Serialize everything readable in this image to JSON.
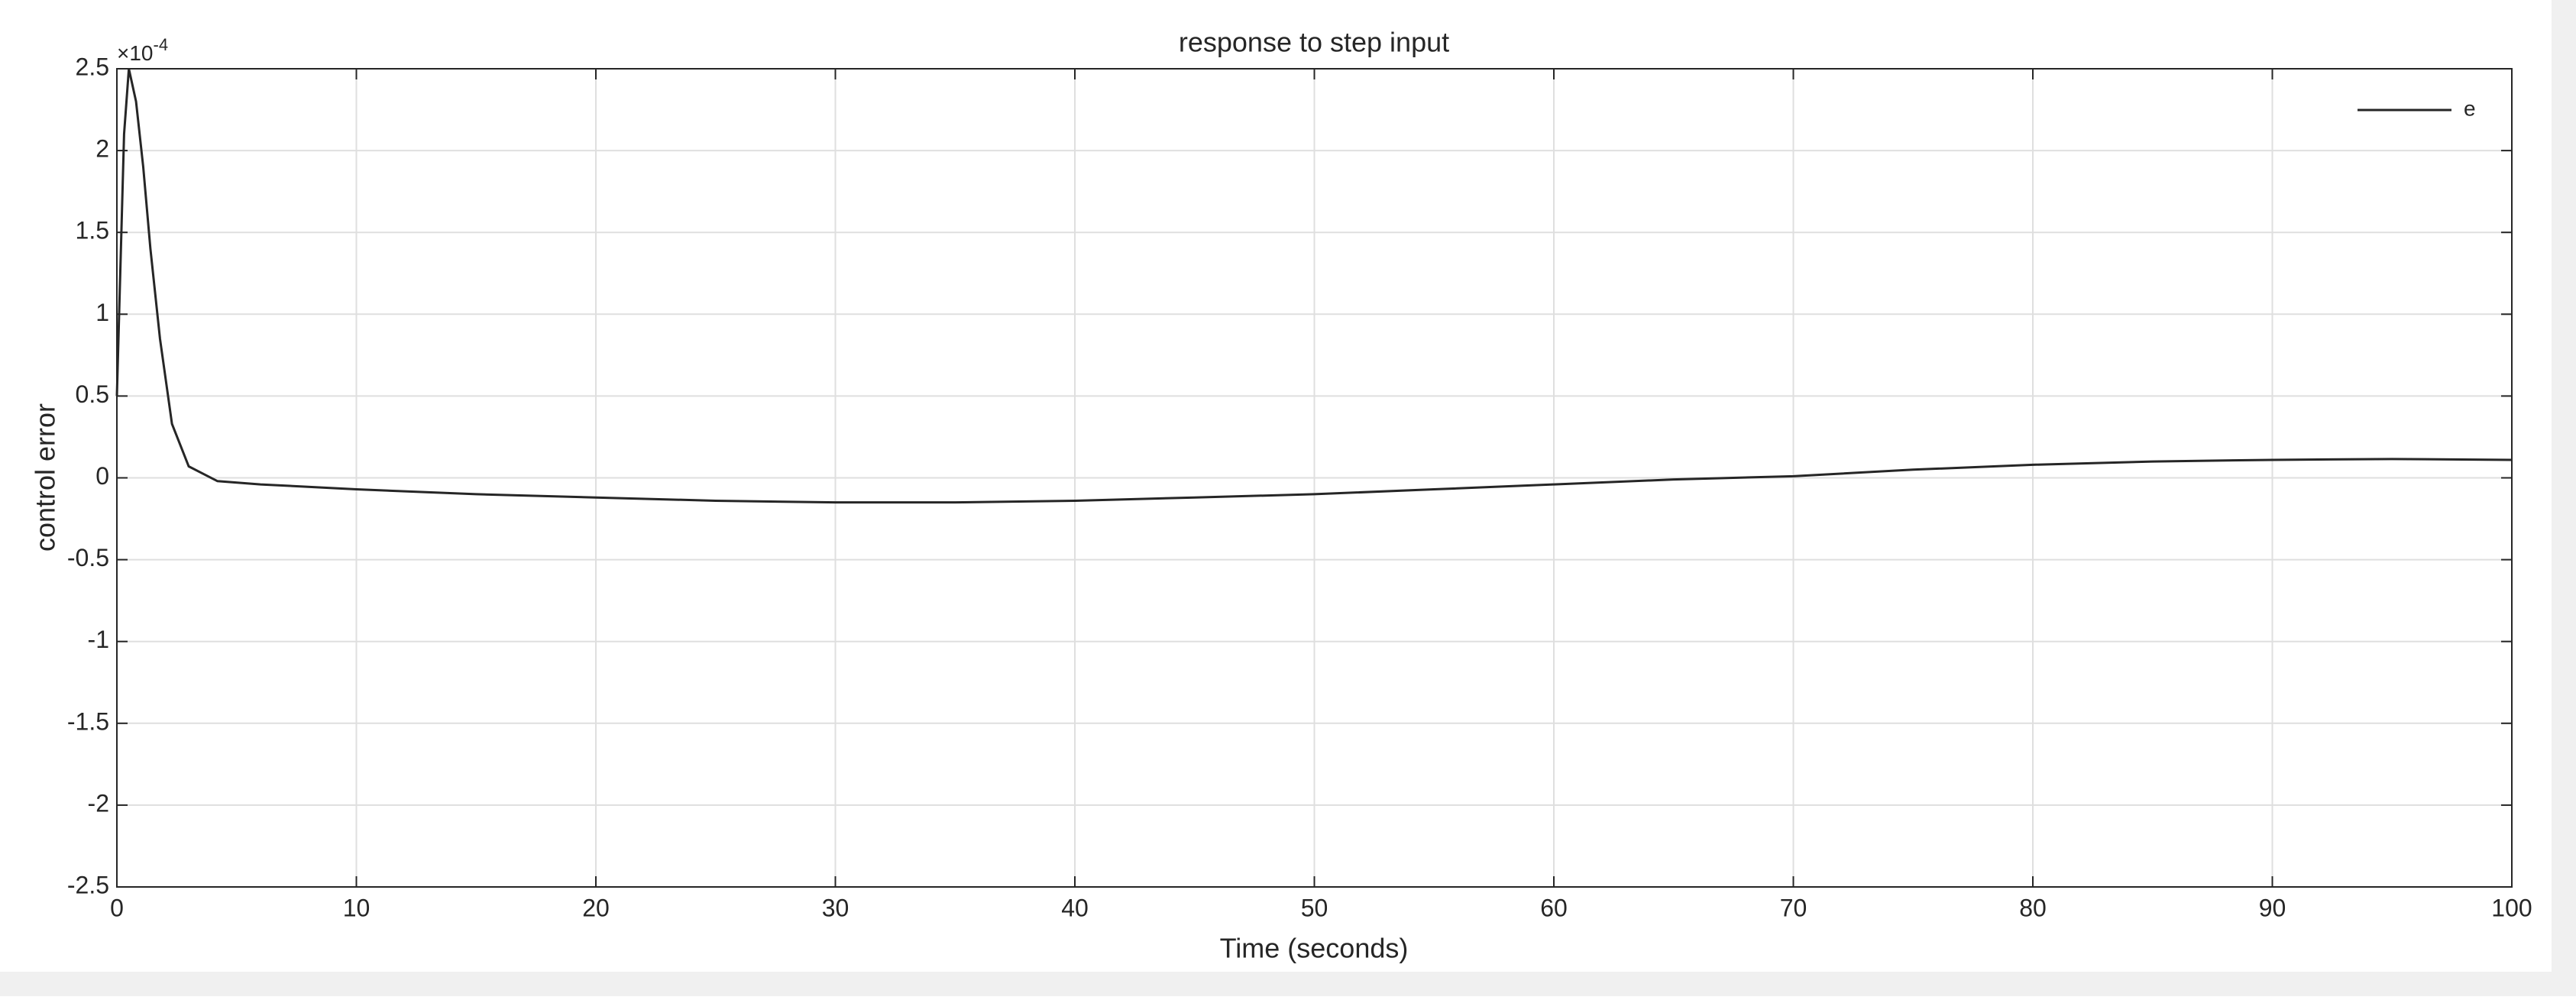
{
  "chart_data": {
    "type": "line",
    "title": "response to step input",
    "x_label": "Time (seconds)",
    "y_label": "control error",
    "y_multiplier": {
      "base": "×10",
      "exponent": "-4"
    },
    "x": [
      0,
      0.3,
      0.5,
      0.8,
      1.1,
      1.4,
      1.8,
      2.3,
      3,
      4.2,
      6,
      10,
      15,
      20,
      25,
      30,
      35,
      40,
      45,
      50,
      55,
      60,
      65,
      70,
      75,
      80,
      85,
      90,
      95,
      100
    ],
    "series": [
      {
        "name": "e",
        "color": "#262626",
        "values": [
          0.5,
          2.1,
          2.5,
          2.3,
          1.9,
          1.4,
          0.85,
          0.33,
          0.07,
          -0.02,
          -0.04,
          -0.07,
          -0.1,
          -0.12,
          -0.14,
          -0.15,
          -0.15,
          -0.14,
          -0.12,
          -0.1,
          -0.07,
          -0.04,
          -0.01,
          0.01,
          0.05,
          0.08,
          0.1,
          0.11,
          0.115,
          0.11
        ]
      }
    ],
    "xlim": [
      0,
      100
    ],
    "xticks": [
      0,
      10,
      20,
      30,
      40,
      50,
      60,
      70,
      80,
      90,
      100
    ],
    "ylim": [
      -2.5,
      2.5
    ],
    "yticks": [
      -2.5,
      -2,
      -1.5,
      -1,
      -0.5,
      0,
      0.5,
      1,
      1.5,
      2,
      2.5
    ],
    "grid": true,
    "legend": "top-right"
  }
}
